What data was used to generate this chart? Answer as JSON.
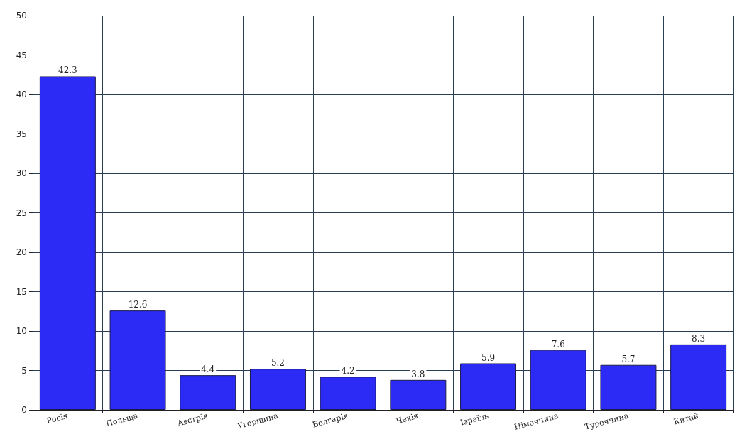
{
  "chart_data": {
    "type": "bar",
    "categories": [
      "Росія",
      "Польща",
      "Австрія",
      "Угорщина",
      "Болгарія",
      "Чехія",
      "Ізраїль",
      "Німеччина",
      "Туреччина",
      "Китай"
    ],
    "values": [
      42.3,
      12.6,
      4.4,
      5.2,
      4.2,
      3.8,
      5.9,
      7.6,
      5.7,
      8.3
    ],
    "color": "#2b2bf5",
    "ylim": [
      0,
      50
    ],
    "yticks": [
      0,
      5,
      10,
      15,
      20,
      25,
      30,
      35,
      40,
      45,
      50
    ],
    "grid": true,
    "data_labels": true
  }
}
